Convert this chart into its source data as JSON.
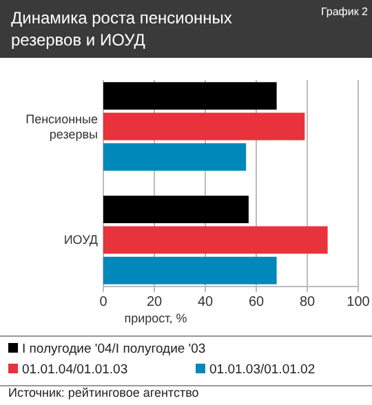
{
  "chart_data": {
    "type": "bar",
    "orientation": "horizontal",
    "title": "Динамика роста пенсионных резервов и ИОУД",
    "subtitle": "График 2",
    "xlabel": "прирост, %",
    "categories": [
      "Пенсионные резервы",
      "ИОУД"
    ],
    "series": [
      {
        "name": "I полугодие '04/I полугодие '03",
        "color": "#000000",
        "values": [
          68,
          57
        ]
      },
      {
        "name": "01.01.04/01.01.03",
        "color": "#e8323c",
        "values": [
          79,
          88
        ]
      },
      {
        "name": "01.01.03/01.01.02",
        "color": "#0088bb",
        "values": [
          56,
          68
        ]
      }
    ],
    "xlim": [
      0,
      100
    ],
    "xticks": [
      0,
      20,
      40,
      60,
      80,
      100
    ],
    "grid": "x",
    "legend": "bottom",
    "annotations": [
      "Источник: рейтинговое агентство"
    ]
  }
}
